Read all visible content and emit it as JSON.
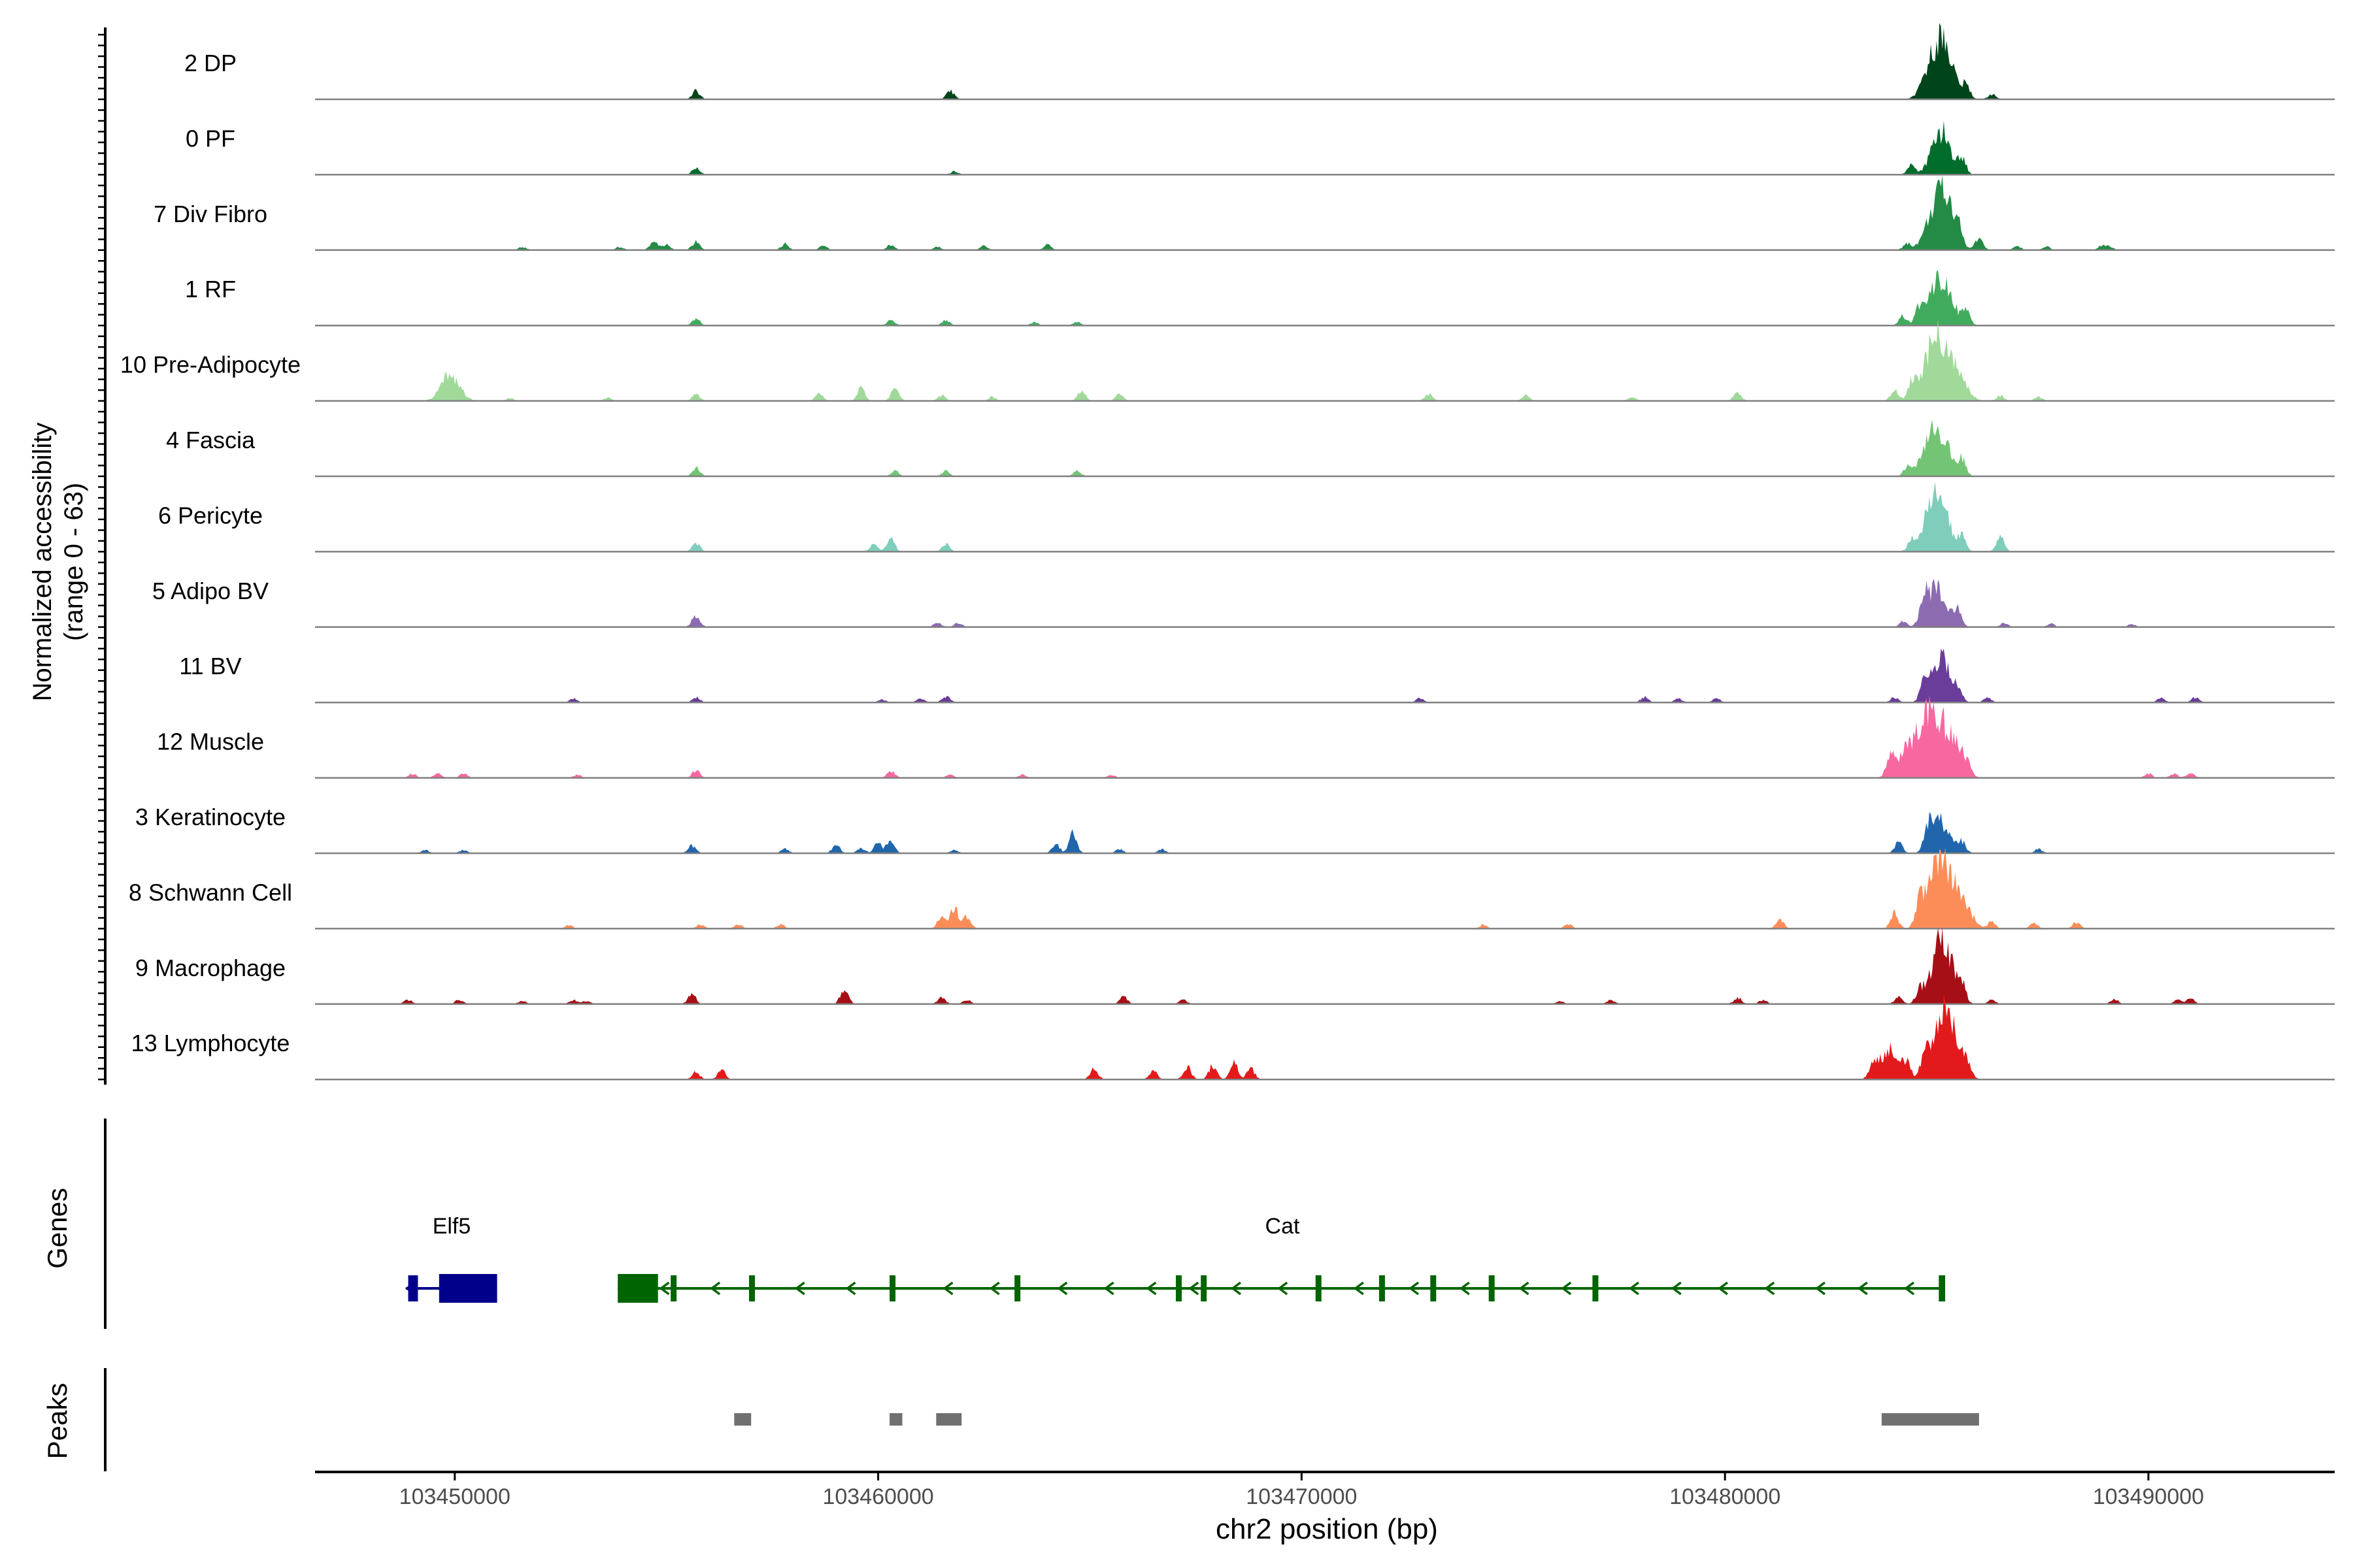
{
  "chart_data": {
    "type": "area",
    "ylabel": "Normalized accessibility",
    "ylabel_range": "(range 0 - 63)",
    "ylim": [
      0,
      63
    ],
    "xlabel": "chr2 position (bp)",
    "xlim": [
      103446700,
      103494400
    ],
    "xticks": [
      103450000,
      103460000,
      103470000,
      103480000,
      103490000
    ],
    "xtick_labels": [
      "103450000",
      "103460000",
      "103470000",
      "103480000",
      "103490000"
    ],
    "tracks": [
      {
        "name": "2 DP",
        "color": "#00441b",
        "peaks": [
          [
            103455700,
            8
          ],
          [
            103461700,
            8
          ],
          [
            103484900,
            30
          ],
          [
            103485200,
            45
          ],
          [
            103485700,
            12
          ],
          [
            103486300,
            5
          ]
        ]
      },
      {
        "name": "0 PF",
        "color": "#006d2c",
        "peaks": [
          [
            103455700,
            7
          ],
          [
            103461800,
            3
          ],
          [
            103484400,
            10
          ],
          [
            103485100,
            42
          ],
          [
            103485600,
            15
          ]
        ]
      },
      {
        "name": "7 Div Fibro",
        "color": "#238b45",
        "peaks": [
          [
            103451600,
            3
          ],
          [
            103453900,
            3
          ],
          [
            103454700,
            8
          ],
          [
            103455000,
            5
          ],
          [
            103455700,
            8
          ],
          [
            103457800,
            6
          ],
          [
            103458700,
            4
          ],
          [
            103460300,
            5
          ],
          [
            103461400,
            3
          ],
          [
            103462500,
            4
          ],
          [
            103464000,
            5
          ],
          [
            103484300,
            6
          ],
          [
            103484900,
            25
          ],
          [
            103485200,
            45
          ],
          [
            103485500,
            18
          ],
          [
            103486000,
            12
          ],
          [
            103486900,
            4
          ],
          [
            103487600,
            3
          ],
          [
            103488900,
            4
          ],
          [
            103489100,
            3
          ]
        ]
      },
      {
        "name": "1 RF",
        "color": "#41ab5d",
        "peaks": [
          [
            103455700,
            7
          ],
          [
            103460300,
            5
          ],
          [
            103461600,
            5
          ],
          [
            103463700,
            3
          ],
          [
            103464700,
            3
          ],
          [
            103484200,
            9
          ],
          [
            103484600,
            12
          ],
          [
            103484900,
            25
          ],
          [
            103485200,
            35
          ],
          [
            103485700,
            12
          ]
        ]
      },
      {
        "name": "10 Pre-Adipocyte",
        "color": "#a1d99b",
        "peaks": [
          [
            103449900,
            25
          ],
          [
            103451300,
            3
          ],
          [
            103453600,
            3
          ],
          [
            103455700,
            6
          ],
          [
            103458600,
            7
          ],
          [
            103459600,
            12
          ],
          [
            103460400,
            12
          ],
          [
            103461500,
            5
          ],
          [
            103462700,
            4
          ],
          [
            103464800,
            9
          ],
          [
            103465700,
            6
          ],
          [
            103473000,
            7
          ],
          [
            103475300,
            5
          ],
          [
            103477800,
            4
          ],
          [
            103480300,
            8
          ],
          [
            103484000,
            10
          ],
          [
            103484400,
            15
          ],
          [
            103484800,
            30
          ],
          [
            103485100,
            45
          ],
          [
            103485500,
            22
          ],
          [
            103486500,
            5
          ],
          [
            103487400,
            4
          ]
        ]
      },
      {
        "name": "4 Fascia",
        "color": "#74c476",
        "peaks": [
          [
            103455700,
            8
          ],
          [
            103460400,
            5
          ],
          [
            103461600,
            5
          ],
          [
            103464700,
            5
          ],
          [
            103484300,
            8
          ],
          [
            103484800,
            22
          ],
          [
            103485100,
            36
          ],
          [
            103485600,
            15
          ]
        ]
      },
      {
        "name": "6 Pericyte",
        "color": "#7fcdbb",
        "peaks": [
          [
            103455700,
            8
          ],
          [
            103459900,
            8
          ],
          [
            103460300,
            12
          ],
          [
            103461600,
            7
          ],
          [
            103484400,
            8
          ],
          [
            103484800,
            25
          ],
          [
            103485100,
            42
          ],
          [
            103485600,
            15
          ],
          [
            103486500,
            14
          ]
        ]
      },
      {
        "name": "5 Adipo BV",
        "color": "#8c6bb1",
        "peaks": [
          [
            103455700,
            12
          ],
          [
            103461400,
            4
          ],
          [
            103461900,
            4
          ],
          [
            103484200,
            5
          ],
          [
            103484700,
            20
          ],
          [
            103485000,
            38
          ],
          [
            103485500,
            18
          ],
          [
            103486600,
            4
          ],
          [
            103487700,
            3
          ],
          [
            103489600,
            3
          ]
        ]
      },
      {
        "name": "11 BV",
        "color": "#6a3d9a",
        "peaks": [
          [
            103452800,
            4
          ],
          [
            103455700,
            5
          ],
          [
            103460100,
            3
          ],
          [
            103461000,
            4
          ],
          [
            103461600,
            6
          ],
          [
            103472800,
            4
          ],
          [
            103478100,
            5
          ],
          [
            103478900,
            4
          ],
          [
            103479800,
            4
          ],
          [
            103484000,
            5
          ],
          [
            103484700,
            15
          ],
          [
            103485100,
            42
          ],
          [
            103485500,
            12
          ],
          [
            103486200,
            5
          ],
          [
            103490300,
            4
          ],
          [
            103491100,
            5
          ]
        ]
      },
      {
        "name": "12 Muscle",
        "color": "#f768a1",
        "peaks": [
          [
            103449000,
            4
          ],
          [
            103449600,
            4
          ],
          [
            103450200,
            4
          ],
          [
            103452900,
            3
          ],
          [
            103455700,
            7
          ],
          [
            103460300,
            7
          ],
          [
            103461700,
            3
          ],
          [
            103463400,
            3
          ],
          [
            103465500,
            3
          ],
          [
            103483900,
            20
          ],
          [
            103484300,
            25
          ],
          [
            103484700,
            35
          ],
          [
            103485000,
            45
          ],
          [
            103485400,
            30
          ],
          [
            103485700,
            10
          ],
          [
            103490000,
            4
          ],
          [
            103490600,
            4
          ],
          [
            103491000,
            5
          ]
        ]
      },
      {
        "name": "3 Keratinocyte",
        "color": "#2166ac",
        "peaks": [
          [
            103449300,
            3
          ],
          [
            103450200,
            3
          ],
          [
            103455600,
            7
          ],
          [
            103457800,
            4
          ],
          [
            103459000,
            8
          ],
          [
            103459600,
            5
          ],
          [
            103460000,
            10
          ],
          [
            103460300,
            12
          ],
          [
            103461800,
            3
          ],
          [
            103464200,
            8
          ],
          [
            103464600,
            20
          ],
          [
            103465700,
            4
          ],
          [
            103466700,
            4
          ],
          [
            103484100,
            10
          ],
          [
            103484800,
            20
          ],
          [
            103485100,
            30
          ],
          [
            103485600,
            10
          ],
          [
            103487400,
            4
          ]
        ]
      },
      {
        "name": "8 Schwann Cell",
        "color": "#fc8d59",
        "peaks": [
          [
            103452700,
            3
          ],
          [
            103455800,
            4
          ],
          [
            103456700,
            4
          ],
          [
            103457700,
            4
          ],
          [
            103461500,
            12
          ],
          [
            103461800,
            20
          ],
          [
            103462100,
            12
          ],
          [
            103474300,
            4
          ],
          [
            103476300,
            4
          ],
          [
            103481300,
            8
          ],
          [
            103484000,
            15
          ],
          [
            103484600,
            20
          ],
          [
            103484900,
            35
          ],
          [
            103485200,
            45
          ],
          [
            103485600,
            25
          ],
          [
            103486300,
            6
          ],
          [
            103487300,
            5
          ],
          [
            103488300,
            6
          ]
        ]
      },
      {
        "name": "9 Macrophage",
        "color": "#a50f15",
        "peaks": [
          [
            103448900,
            4
          ],
          [
            103450100,
            4
          ],
          [
            103451600,
            3
          ],
          [
            103452800,
            4
          ],
          [
            103453100,
            3
          ],
          [
            103455600,
            10
          ],
          [
            103459200,
            15
          ],
          [
            103461500,
            6
          ],
          [
            103462100,
            4
          ],
          [
            103465800,
            7
          ],
          [
            103467200,
            4
          ],
          [
            103476100,
            3
          ],
          [
            103477300,
            4
          ],
          [
            103480300,
            6
          ],
          [
            103480900,
            4
          ],
          [
            103484100,
            7
          ],
          [
            103484600,
            12
          ],
          [
            103485000,
            25
          ],
          [
            103485200,
            45
          ],
          [
            103485600,
            15
          ],
          [
            103486300,
            4
          ],
          [
            103489200,
            5
          ],
          [
            103490700,
            4
          ],
          [
            103491000,
            5
          ]
        ]
      },
      {
        "name": "13 Lymphocyte",
        "color": "#e31a1c",
        "peaks": [
          [
            103455700,
            7
          ],
          [
            103456300,
            9
          ],
          [
            103465100,
            10
          ],
          [
            103466500,
            9
          ],
          [
            103467300,
            12
          ],
          [
            103467900,
            13
          ],
          [
            103468400,
            16
          ],
          [
            103468800,
            10
          ],
          [
            103483500,
            15
          ],
          [
            103483900,
            30
          ],
          [
            103484300,
            12
          ],
          [
            103484700,
            18
          ],
          [
            103485100,
            55
          ],
          [
            103485400,
            30
          ],
          [
            103485700,
            12
          ]
        ]
      }
    ],
    "genes": [
      {
        "name": "Elf5",
        "color": "#00008b",
        "strand": "-",
        "start": 103448850,
        "end": 103451000,
        "exons": [
          [
            103448900,
            103449130
          ],
          [
            103449630,
            103451000
          ]
        ],
        "arrows": [
          103448950
        ]
      },
      {
        "name": "Cat",
        "color": "#006400",
        "strand": "-",
        "start": 103453850,
        "end": 103485200,
        "exons": [
          [
            103453850,
            103454800
          ],
          [
            103455100,
            103455200
          ],
          [
            103456950,
            103457050
          ],
          [
            103460270,
            103460370
          ],
          [
            103463220,
            103463320
          ],
          [
            103467030,
            103467130
          ],
          [
            103467620,
            103467720
          ],
          [
            103470330,
            103470430
          ],
          [
            103471830,
            103471930
          ],
          [
            103473040,
            103473140
          ],
          [
            103474420,
            103474520
          ],
          [
            103476870,
            103476970
          ],
          [
            103485050,
            103485200
          ]
        ],
        "arrows": [
          103454950,
          103456150,
          103458150,
          103459350,
          103461650,
          103462750,
          103464350,
          103465450,
          103466450,
          103467450,
          103468450,
          103469550,
          103471350,
          103472650,
          103473850,
          103475250,
          103476250,
          103477850,
          103478850,
          103479950,
          103481050,
          103482250,
          103483250,
          103484350
        ]
      }
    ],
    "peak_regions": [
      [
        103456600,
        103457000
      ],
      [
        103460270,
        103460570
      ],
      [
        103461370,
        103461970
      ],
      [
        103483700,
        103486000
      ]
    ],
    "panel_labels": {
      "genes": "Genes",
      "peaks": "Peaks"
    }
  }
}
